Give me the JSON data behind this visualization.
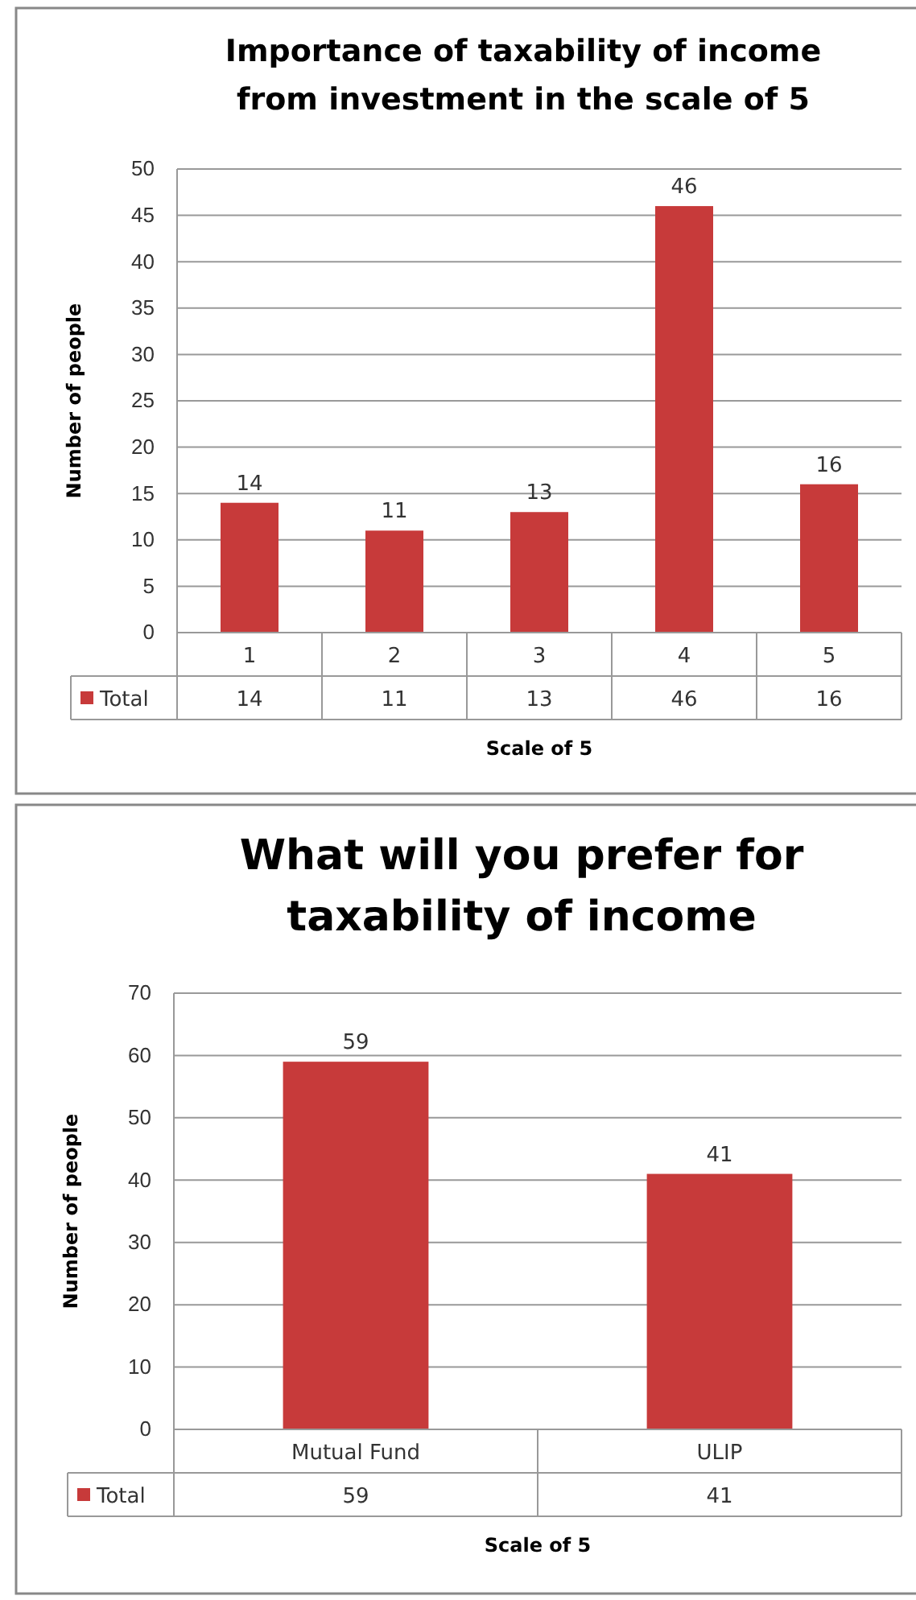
{
  "chart_data": [
    {
      "type": "bar",
      "title": "Importance of taxability of income from investment in the scale of 5",
      "xlabel": "Scale of 5",
      "ylabel": "Number of people",
      "categories": [
        "1",
        "2",
        "3",
        "4",
        "5"
      ],
      "series": [
        {
          "name": "Total",
          "color": "#c73a3a",
          "values": [
            14,
            11,
            13,
            46,
            16
          ],
          "value_labels": [
            "14",
            "11",
            "13",
            "46",
            "16"
          ]
        }
      ],
      "ylim": [
        0,
        50
      ],
      "yticks": [
        0,
        5,
        10,
        15,
        20,
        25,
        30,
        35,
        40,
        45,
        50
      ],
      "grid": "y",
      "legend": "bottom left",
      "annotations": [
        "14",
        "11",
        "13",
        "46",
        "16"
      ]
    },
    {
      "type": "bar",
      "title": "What will you prefer for taxability of income",
      "xlabel": "Scale of 5",
      "ylabel": "Number of people",
      "categories": [
        "Mutual Fund",
        "ULIP"
      ],
      "series": [
        {
          "name": "Total",
          "color": "#c73a3a",
          "values": [
            59,
            41
          ],
          "value_labels": [
            "59",
            "41"
          ]
        }
      ],
      "ylim": [
        0,
        70
      ],
      "yticks": [
        0,
        10,
        20,
        30,
        40,
        50,
        60,
        70
      ],
      "grid": "y",
      "legend": "bottom left",
      "annotations": [
        "59",
        "41"
      ]
    }
  ]
}
